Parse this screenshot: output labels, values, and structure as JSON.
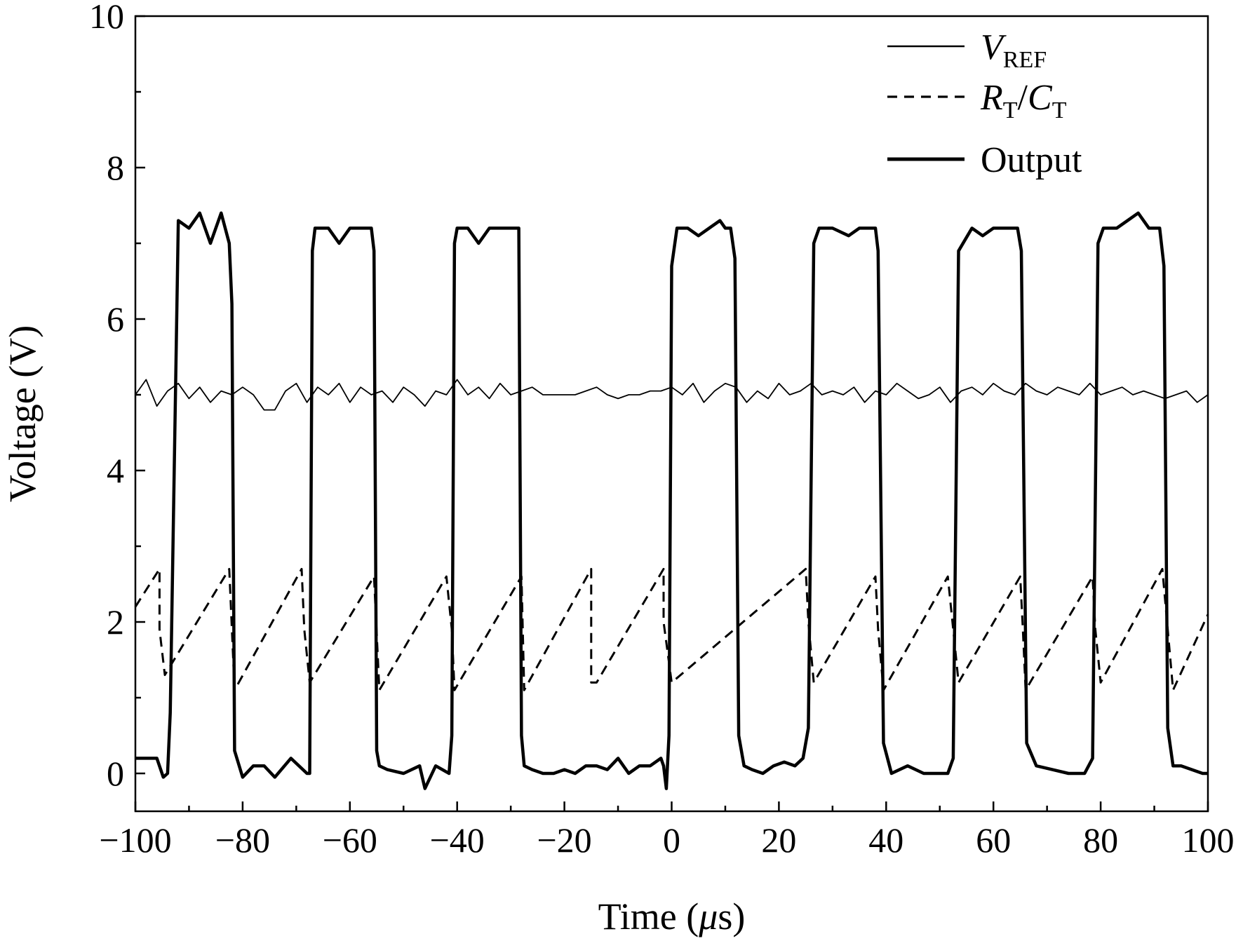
{
  "chart_data": {
    "type": "line",
    "xlabel_main": "Time (",
    "xlabel_unit_italic": "μ",
    "xlabel_unit_rest": "s)",
    "ylabel": "Voltage (V)",
    "xlim": [
      -100,
      100
    ],
    "ylim": [
      -0.5,
      10
    ],
    "x_ticks": [
      -100,
      -80,
      -60,
      -40,
      -20,
      0,
      20,
      40,
      60,
      80,
      100
    ],
    "x_tick_labels": [
      "−100",
      "−80",
      "−60",
      "−40",
      "−20",
      "0",
      "20",
      "40",
      "60",
      "80",
      "100"
    ],
    "y_ticks": [
      0,
      2,
      4,
      6,
      8,
      10
    ],
    "y_tick_labels": [
      "0",
      "2",
      "4",
      "6",
      "8",
      "10"
    ],
    "grid": false,
    "legend_position": "top-right",
    "legend": [
      {
        "main": "V",
        "sub": "REF",
        "style": "thin-solid"
      },
      {
        "main": "R",
        "sub": "T",
        "sep": "/",
        "main2": "C",
        "sub2": "T",
        "style": "dashed"
      },
      {
        "main": "Output",
        "style": "thick-solid"
      }
    ],
    "series": [
      {
        "key": "vref",
        "style": "thin-solid",
        "color": "#000000",
        "x": [
          -100,
          -98,
          -96,
          -94,
          -92,
          -90,
          -88,
          -86,
          -84,
          -82,
          -80,
          -78,
          -76,
          -74,
          -72,
          -70,
          -68,
          -66,
          -64,
          -62,
          -60,
          -58,
          -56,
          -54,
          -52,
          -50,
          -48,
          -46,
          -44,
          -42,
          -40,
          -38,
          -36,
          -34,
          -32,
          -30,
          -28,
          -26,
          -24,
          -22,
          -20,
          -18,
          -16,
          -14,
          -12,
          -10,
          -8,
          -6,
          -4,
          -2,
          0,
          2,
          4,
          6,
          8,
          10,
          12,
          14,
          16,
          18,
          20,
          22,
          24,
          26,
          28,
          30,
          32,
          34,
          36,
          38,
          40,
          42,
          44,
          46,
          48,
          50,
          52,
          54,
          56,
          58,
          60,
          62,
          64,
          66,
          68,
          70,
          72,
          74,
          76,
          78,
          80,
          82,
          84,
          86,
          88,
          90,
          92,
          94,
          96,
          98,
          100
        ],
        "y": [
          5.0,
          5.2,
          4.85,
          5.05,
          5.15,
          4.95,
          5.1,
          4.9,
          5.05,
          5.0,
          5.1,
          5.0,
          4.8,
          4.8,
          5.05,
          5.15,
          4.9,
          5.1,
          5.0,
          5.15,
          4.9,
          5.1,
          5.0,
          5.05,
          4.9,
          5.1,
          5.0,
          4.85,
          5.05,
          5.0,
          5.2,
          5.0,
          5.1,
          4.95,
          5.15,
          5.0,
          5.05,
          5.1,
          5.0,
          5.0,
          5.0,
          5.0,
          5.05,
          5.1,
          5.0,
          4.95,
          5.0,
          5.0,
          5.05,
          5.05,
          5.1,
          5.0,
          5.15,
          4.9,
          5.05,
          5.15,
          5.1,
          4.9,
          5.05,
          4.95,
          5.15,
          5.0,
          5.05,
          5.15,
          5.0,
          5.05,
          5.0,
          5.1,
          4.9,
          5.05,
          5.0,
          5.15,
          5.05,
          4.95,
          5.0,
          5.1,
          4.9,
          5.05,
          5.1,
          5.0,
          5.15,
          5.05,
          5.0,
          5.15,
          5.05,
          5.0,
          5.1,
          5.05,
          5.0,
          5.15,
          5.0,
          5.05,
          5.1,
          5.0,
          5.05,
          5.0,
          4.95,
          5.0,
          5.05,
          4.9,
          5.0
        ]
      },
      {
        "key": "rtct",
        "style": "dashed",
        "color": "#000000",
        "x": [
          -100,
          -95.5,
          -95.5,
          -94.5,
          -82.5,
          -81.5,
          -69,
          -68.5,
          -67.5,
          -55.5,
          -54.5,
          -42,
          -41,
          -40.5,
          -28,
          -27.5,
          -15,
          -15,
          -14,
          -1.5,
          -1.5,
          0,
          25,
          25.5,
          26.5,
          38,
          38.5,
          39.5,
          51.5,
          52.5,
          53.5,
          65,
          65.5,
          66,
          78.5,
          79,
          80,
          91.5,
          92.5,
          93.5,
          100
        ],
        "y": [
          2.2,
          2.7,
          1.9,
          1.3,
          2.7,
          1.1,
          2.7,
          1.9,
          1.2,
          2.6,
          1.1,
          2.6,
          1.9,
          1.1,
          2.6,
          1.1,
          2.7,
          1.2,
          1.2,
          2.7,
          2.0,
          1.2,
          2.7,
          2.0,
          1.2,
          2.6,
          1.9,
          1.1,
          2.6,
          1.9,
          1.2,
          2.6,
          1.9,
          1.1,
          2.6,
          1.9,
          1.2,
          2.7,
          1.9,
          1.1,
          2.1
        ]
      },
      {
        "key": "output",
        "style": "thick-solid",
        "color": "#000000",
        "x": [
          -100,
          -96,
          -94.8,
          -94,
          -93.5,
          -92,
          -90,
          -88,
          -86,
          -84,
          -82.5,
          -82,
          -81.5,
          -80,
          -78,
          -76,
          -74,
          -71,
          -68,
          -67.5,
          -67,
          -66.5,
          -64,
          -62,
          -60,
          -58,
          -56,
          -55.5,
          -55,
          -54.5,
          -53,
          -50,
          -47,
          -46,
          -44,
          -41.5,
          -41,
          -40.5,
          -40,
          -38,
          -36,
          -34,
          -32,
          -29,
          -28.5,
          -28,
          -27.5,
          -26,
          -24,
          -22,
          -20,
          -18,
          -16,
          -14,
          -12,
          -10,
          -8,
          -6,
          -4,
          -2,
          -1.5,
          -1,
          -0.5,
          0,
          1,
          3,
          5,
          7,
          9,
          10,
          11,
          11.8,
          12.5,
          13.5,
          15,
          17,
          19,
          21,
          23,
          24.5,
          25.5,
          26.5,
          27.5,
          30,
          33,
          35,
          37,
          38,
          38.5,
          39.5,
          41,
          44,
          47,
          50,
          51.5,
          52.5,
          53.5,
          56,
          58,
          60,
          62,
          64,
          64.5,
          65.2,
          66.2,
          68,
          71,
          74,
          77,
          78.5,
          79.5,
          80.5,
          83,
          85,
          87,
          89,
          91,
          91.8,
          92.5,
          93.5,
          95,
          97,
          99,
          100
        ],
        "y": [
          0.2,
          0.2,
          -0.05,
          0.0,
          0.8,
          7.3,
          7.2,
          7.4,
          7.0,
          7.4,
          7.0,
          6.2,
          0.3,
          -0.05,
          0.1,
          0.1,
          -0.05,
          0.2,
          0.0,
          0.0,
          6.9,
          7.2,
          7.2,
          7.0,
          7.2,
          7.2,
          7.2,
          6.9,
          0.3,
          0.1,
          0.05,
          0.0,
          0.1,
          -0.2,
          0.1,
          0.0,
          0.5,
          7.0,
          7.2,
          7.2,
          7.0,
          7.2,
          7.2,
          7.2,
          7.2,
          0.5,
          0.1,
          0.05,
          0.0,
          0.0,
          0.05,
          0.0,
          0.1,
          0.1,
          0.05,
          0.2,
          0.0,
          0.1,
          0.1,
          0.2,
          0.1,
          -0.2,
          0.5,
          6.7,
          7.2,
          7.2,
          7.1,
          7.2,
          7.3,
          7.2,
          7.2,
          6.8,
          0.5,
          0.1,
          0.05,
          0.0,
          0.1,
          0.15,
          0.1,
          0.2,
          0.6,
          7.0,
          7.2,
          7.2,
          7.1,
          7.2,
          7.2,
          7.2,
          6.9,
          0.4,
          0.0,
          0.1,
          0.0,
          0.0,
          0.0,
          0.2,
          6.9,
          7.2,
          7.1,
          7.2,
          7.2,
          7.2,
          7.2,
          6.9,
          0.4,
          0.1,
          0.05,
          0.0,
          0.0,
          0.2,
          7.0,
          7.2,
          7.2,
          7.3,
          7.4,
          7.2,
          7.2,
          6.7,
          0.6,
          0.1,
          0.1,
          0.05,
          0.0,
          0.0
        ]
      }
    ]
  }
}
